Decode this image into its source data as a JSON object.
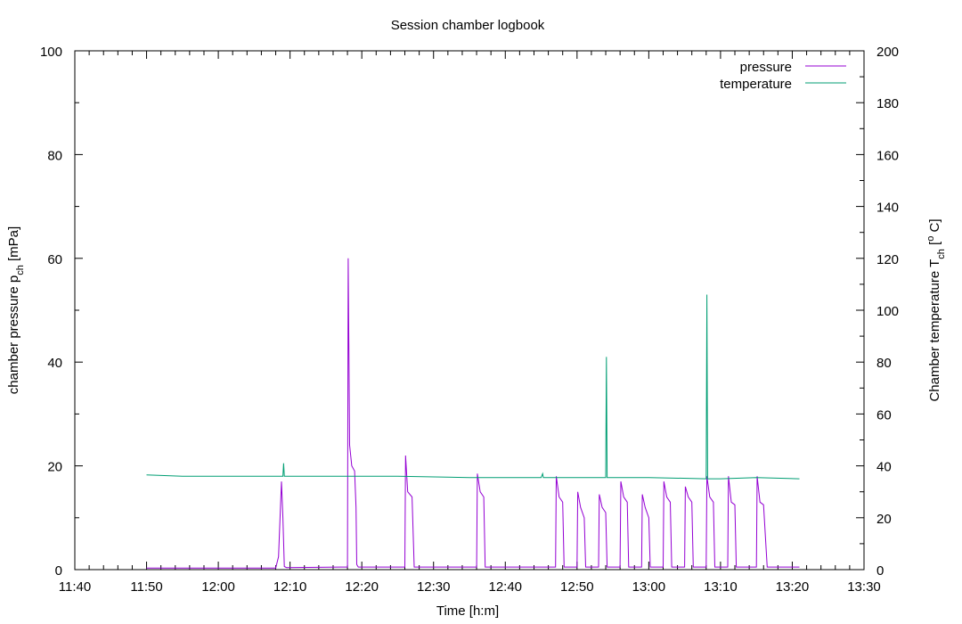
{
  "chart_data": {
    "type": "line",
    "title": "Session chamber logbook",
    "xlabel": "Time [h:m]",
    "ylabel": {
      "main": "chamber pressure p",
      "sub": "ch",
      "unit": " [mPa]"
    },
    "y2label": {
      "main": "Chamber temperature T",
      "sub": "ch",
      "unit_open": " [",
      "sup": "o",
      "unit_close": " C]"
    },
    "xlim_minutes_of_day": [
      700,
      810
    ],
    "ylim": [
      0,
      100
    ],
    "y2lim": [
      0,
      200
    ],
    "x_ticks": [
      "11:40",
      "11:50",
      "12:00",
      "12:10",
      "12:20",
      "12:30",
      "12:40",
      "12:50",
      "13:00",
      "13:10",
      "13:20",
      "13:30"
    ],
    "y_ticks": [
      "0",
      "20",
      "40",
      "60",
      "80",
      "100"
    ],
    "y2_ticks": [
      "0",
      "20",
      "40",
      "60",
      "80",
      "100",
      "120",
      "140",
      "160",
      "180",
      "200"
    ],
    "grid": false,
    "legend_position": "top-right",
    "series": [
      {
        "name": "pressure",
        "axis": "y",
        "color": "#9400d3",
        "x_hm": [
          "11:50",
          "12:08",
          "12:08.4",
          "12:08.6",
          "12:08.8",
          "12:09",
          "12:09.2",
          "12:09.5",
          "12:18",
          "12:18.1",
          "12:18.3",
          "12:18.6",
          "12:19",
          "12:19.2",
          "12:19.3",
          "12:19.5",
          "12:26",
          "12:26.1",
          "12:26.4",
          "12:27",
          "12:27.3",
          "12:36",
          "12:36.1",
          "12:36.5",
          "12:37",
          "12:37.2",
          "12:47",
          "12:47.1",
          "12:47.5",
          "12:48",
          "12:48.2",
          "12:50",
          "12:50.1",
          "12:50.5",
          "12:51",
          "12:51.2",
          "12:53",
          "12:53.1",
          "12:53.5",
          "12:54",
          "12:54.2",
          "12:56",
          "12:56.1",
          "12:56.5",
          "12:57",
          "12:57.2",
          "12:59",
          "12:59.1",
          "12:59.5",
          "13:00",
          "13:00.2",
          "13:02",
          "13:02.1",
          "13:02.5",
          "13:03",
          "13:03.2",
          "13:05",
          "13:05.1",
          "13:05.5",
          "13:06",
          "13:06.2",
          "13:08",
          "13:08.1",
          "13:08.5",
          "13:09",
          "13:09.2",
          "13:11",
          "13:11.1",
          "13:11.5",
          "13:12",
          "13:12.2",
          "13:15",
          "13:15.1",
          "13:15.5",
          "13:16",
          "13:16.5",
          "13:21"
        ],
        "values": [
          0.3,
          0.3,
          2.5,
          10,
          17,
          10,
          0.6,
          0.4,
          0.5,
          60,
          24,
          20,
          19,
          12,
          1,
          0.5,
          0.5,
          22,
          15,
          14,
          0.5,
          0.5,
          18.5,
          15,
          14,
          0.5,
          0.5,
          18,
          14,
          13,
          0.5,
          0.5,
          15,
          12,
          10,
          0.5,
          0.5,
          14.5,
          12,
          11,
          0.5,
          0.5,
          17,
          14,
          13,
          0.5,
          0.5,
          14.5,
          12,
          10,
          0.5,
          0.5,
          17,
          14,
          13,
          0.5,
          0.5,
          16,
          14,
          13,
          0.5,
          0.5,
          18,
          14,
          13,
          0.5,
          0.5,
          18,
          13,
          12.5,
          0.5,
          0.5,
          18,
          13,
          12.5,
          0.5,
          0.5
        ]
      },
      {
        "name": "temperature",
        "axis": "y2",
        "color": "#009e73",
        "x_hm": [
          "11:50",
          "11:55",
          "12:05",
          "12:09",
          "12:09.1",
          "12:09.2",
          "12:15",
          "12:25",
          "12:35",
          "12:45",
          "12:45.2",
          "12:45.3",
          "12:45.4",
          "12:52",
          "12:54",
          "12:54.1",
          "12:54.2",
          "13:00",
          "13:08",
          "13:08.1",
          "13:08.2",
          "13:10",
          "13:15",
          "13:21"
        ],
        "values": [
          36.5,
          36.0,
          36.0,
          36.0,
          41,
          36.0,
          36.0,
          36.0,
          35.5,
          35.5,
          37,
          35.5,
          35.5,
          35.5,
          35.5,
          82,
          35.5,
          35.5,
          35.0,
          106,
          35.0,
          35.0,
          35.5,
          35.0
        ]
      }
    ]
  }
}
